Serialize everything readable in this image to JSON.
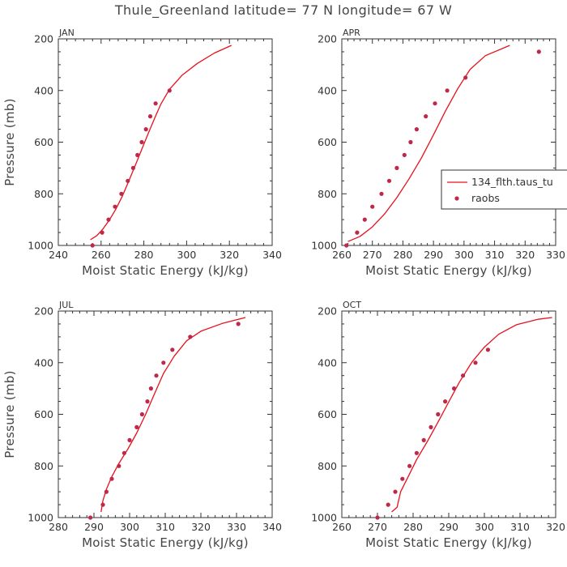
{
  "title": "Thule_Greenland  latitude= 77 N longitude= 67 W",
  "legend": {
    "model_label": "134_flth.taus_tu",
    "obs_label": "raobs",
    "model_color": "#e8101c",
    "obs_color": "#c0284a"
  },
  "chart_data": [
    {
      "type": "line",
      "title": "JAN",
      "xlabel": "Moist Static Energy (kJ/kg)",
      "ylabel": "Pressure (mb)",
      "xlim": [
        240,
        340
      ],
      "xticks": [
        240,
        260,
        280,
        300,
        320,
        340
      ],
      "ylim": [
        200,
        1000
      ],
      "yticks": [
        200,
        400,
        600,
        800,
        1000
      ],
      "y_reversed": true,
      "series": [
        {
          "name": "134_flth.taus_tu",
          "x": [
            255,
            258,
            261,
            264,
            267,
            270,
            273,
            276,
            279,
            282,
            285,
            288,
            292,
            298,
            305,
            313,
            321
          ],
          "y": [
            978,
            962,
            935,
            900,
            858,
            808,
            750,
            690,
            628,
            567,
            508,
            452,
            395,
            340,
            295,
            255,
            225
          ]
        },
        {
          "name": "raobs",
          "x": [
            256,
            260.5,
            263.5,
            266.5,
            269.5,
            272.5,
            275,
            277,
            279,
            281,
            283,
            285.5,
            292
          ],
          "y": [
            1000,
            950,
            900,
            850,
            800,
            750,
            700,
            650,
            600,
            550,
            500,
            450,
            400
          ]
        }
      ]
    },
    {
      "type": "line",
      "title": "APR",
      "xlabel": "Moist Static Energy (kJ/kg)",
      "ylabel": "",
      "xlim": [
        260,
        330
      ],
      "xticks": [
        260,
        270,
        280,
        290,
        300,
        310,
        320,
        330
      ],
      "ylim": [
        200,
        1000
      ],
      "yticks": [
        200,
        400,
        600,
        800,
        1000
      ],
      "y_reversed": true,
      "series": [
        {
          "name": "134_flth.taus_tu",
          "x": [
            262,
            266,
            270,
            274,
            278,
            282,
            286,
            290,
            294,
            298,
            302,
            307,
            315
          ],
          "y": [
            985,
            965,
            928,
            878,
            815,
            742,
            662,
            572,
            478,
            392,
            318,
            265,
            225
          ]
        },
        {
          "name": "raobs",
          "x": [
            261.5,
            265,
            267.5,
            270,
            273,
            275.5,
            278,
            280.5,
            282.5,
            284.5,
            287.5,
            290.5,
            294.5,
            300.5,
            324.5
          ],
          "y": [
            1000,
            950,
            900,
            850,
            800,
            750,
            700,
            650,
            600,
            550,
            500,
            450,
            400,
            350,
            250
          ]
        }
      ]
    },
    {
      "type": "line",
      "title": "JUL",
      "xlabel": "Moist Static Energy (kJ/kg)",
      "ylabel": "Pressure (mb)",
      "xlim": [
        280,
        340
      ],
      "xticks": [
        280,
        290,
        300,
        310,
        320,
        330,
        340
      ],
      "ylim": [
        200,
        1000
      ],
      "yticks": [
        200,
        400,
        600,
        800,
        1000
      ],
      "y_reversed": true,
      "series": [
        {
          "name": "134_flth.taus_tu",
          "x": [
            292,
            292.5,
            293.5,
            295,
            297,
            299.5,
            302,
            304.5,
            307,
            309.5,
            312.5,
            316,
            320,
            326,
            332.5
          ],
          "y": [
            978,
            935,
            890,
            842,
            790,
            735,
            672,
            600,
            520,
            442,
            375,
            315,
            278,
            248,
            225
          ]
        },
        {
          "name": "raobs",
          "x": [
            289,
            292.5,
            293.5,
            295,
            297,
            298.5,
            300,
            302,
            303.5,
            305,
            306,
            307.5,
            309.5,
            312,
            317,
            330.5
          ],
          "y": [
            1000,
            950,
            900,
            850,
            800,
            750,
            700,
            650,
            600,
            550,
            500,
            450,
            400,
            350,
            300,
            250
          ]
        }
      ]
    },
    {
      "type": "line",
      "title": "OCT",
      "xlabel": "Moist Static Energy (kJ/kg)",
      "ylabel": "",
      "xlim": [
        260,
        320
      ],
      "xticks": [
        260,
        270,
        280,
        290,
        300,
        310,
        320
      ],
      "ylim": [
        200,
        1000
      ],
      "yticks": [
        200,
        400,
        600,
        800,
        1000
      ],
      "y_reversed": true,
      "series": [
        {
          "name": "134_flth.taus_tu",
          "x": [
            274,
            275.5,
            276.5,
            278.5,
            281,
            284,
            287,
            290,
            293,
            296.5,
            300,
            304,
            309,
            315,
            319
          ],
          "y": [
            978,
            960,
            900,
            845,
            775,
            705,
            630,
            552,
            475,
            398,
            340,
            290,
            253,
            232,
            225
          ]
        },
        {
          "name": "raobs",
          "x": [
            270,
            273,
            275,
            277,
            279,
            281,
            283,
            285,
            287,
            289,
            291.5,
            294,
            297.5,
            301
          ],
          "y": [
            1000,
            950,
            900,
            850,
            800,
            750,
            700,
            650,
            600,
            550,
            500,
            450,
            400,
            350
          ]
        }
      ]
    }
  ]
}
